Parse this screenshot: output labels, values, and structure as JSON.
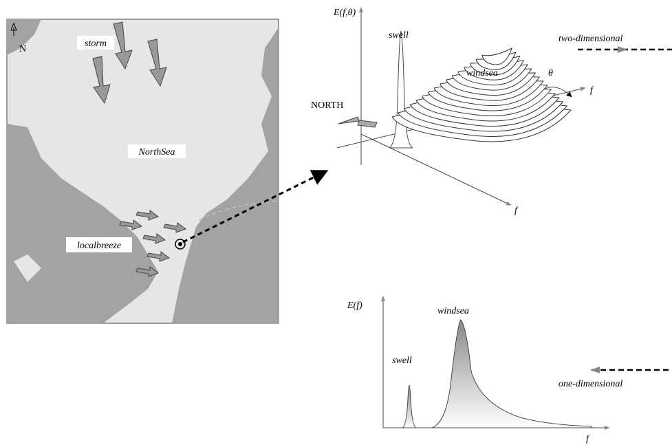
{
  "map": {
    "north": "N",
    "storm": "storm",
    "sea": "NorthSea",
    "breeze": "localbreeze"
  },
  "spectrum_2d": {
    "axis_energy": "E(f,θ)",
    "swell": "swell",
    "windsea": "windsea",
    "theta": "θ",
    "axis_f_direction": "f",
    "axis_f": "f",
    "north": "NORTH",
    "caption": "two-dimensional"
  },
  "spectrum_1d": {
    "axis_energy": "E(f)",
    "swell": "swell",
    "windsea": "windsea",
    "axis_f": "f",
    "caption": "one-dimensional"
  }
}
